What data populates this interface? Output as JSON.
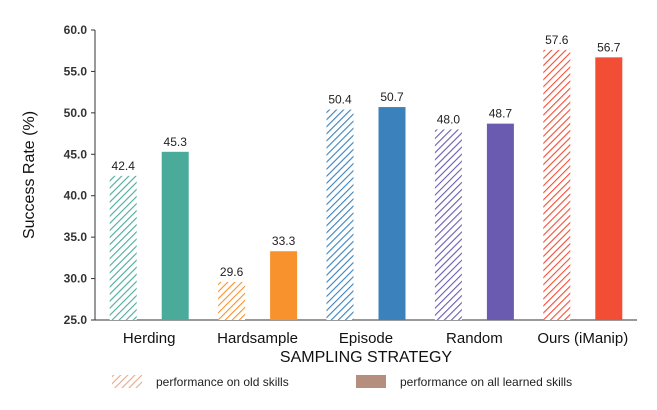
{
  "chart_data": {
    "type": "bar",
    "categories": [
      "Herding",
      "Hardsample",
      "Episode",
      "Random",
      "Ours (iManip)"
    ],
    "series": [
      {
        "name": "performance on old skills",
        "pattern": "hatched",
        "values": [
          42.4,
          29.6,
          50.4,
          48.0,
          57.6
        ]
      },
      {
        "name": "performance on all learned skills",
        "pattern": "solid",
        "values": [
          45.3,
          33.3,
          50.7,
          48.7,
          56.7
        ]
      }
    ],
    "value_labels": [
      [
        "42.4",
        "29.6",
        "50.4",
        "48.0",
        "57.6"
      ],
      [
        "45.3",
        "33.3",
        "50.7",
        "48.7",
        "56.7"
      ]
    ],
    "category_colors": [
      "#4aab9b",
      "#f7922d",
      "#3b82bd",
      "#6a5bb0",
      "#f24e36"
    ],
    "legend_colors": [
      "#e8a88a",
      "#b58e7e"
    ],
    "ylim": [
      25.0,
      60.0
    ],
    "yticks": [
      "25.0",
      "30.0",
      "35.0",
      "40.0",
      "45.0",
      "50.0",
      "55.0",
      "60.0"
    ],
    "xlabel": "SAMPLING STRATEGY",
    "ylabel": "Success Rate (%)",
    "grid": false,
    "legend_position": "bottom"
  }
}
